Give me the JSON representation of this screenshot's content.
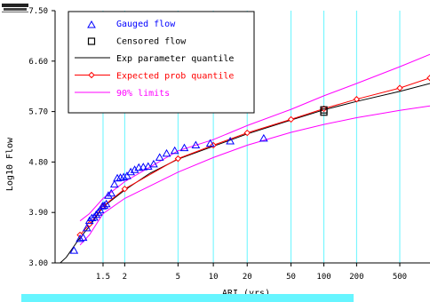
{
  "chart_data": {
    "type": "scatter",
    "title": "",
    "xlabel": "ARI (yrs)",
    "ylabel": "Log10 Flow",
    "x_scale": "gumbel-reduced-variate",
    "xlim": [
      1.05,
      950
    ],
    "ylim": [
      3.0,
      7.5
    ],
    "y_ticks": [
      "3.00",
      "3.90",
      "4.80",
      "5.70",
      "6.60",
      "7.50"
    ],
    "x_ticks": [
      "1.5",
      "2",
      "5",
      "10",
      "20",
      "50",
      "100",
      "200",
      "500"
    ],
    "grid_x_at": [
      1.5,
      2,
      5,
      10,
      20,
      50,
      100,
      200,
      500
    ],
    "grid_color": "#66f5ff",
    "legend_position": "top-left",
    "legend": [
      {
        "label": "Gauged flow",
        "marker": "triangle",
        "color": "#0000ff"
      },
      {
        "label": "Censored flow",
        "marker": "square",
        "color": "#000000"
      },
      {
        "label": "Exp parameter quantile",
        "marker": "line",
        "color": "#000000"
      },
      {
        "label": "Expected prob quantile",
        "marker": "line-diamond",
        "color": "#ff0000"
      },
      {
        "label": "90% limits",
        "marker": "line",
        "color": "#ff00ff"
      }
    ],
    "series": [
      {
        "name": "Gauged flow",
        "kind": "points",
        "marker": "triangle",
        "color": "#0000ff",
        "points": [
          [
            1.15,
            3.22
          ],
          [
            1.2,
            3.43
          ],
          [
            1.23,
            3.45
          ],
          [
            1.27,
            3.62
          ],
          [
            1.3,
            3.75
          ],
          [
            1.33,
            3.8
          ],
          [
            1.36,
            3.81
          ],
          [
            1.39,
            3.86
          ],
          [
            1.42,
            3.9
          ],
          [
            1.45,
            3.94
          ],
          [
            1.49,
            4.01
          ],
          [
            1.52,
            4.02
          ],
          [
            1.56,
            4.05
          ],
          [
            1.6,
            4.2
          ],
          [
            1.66,
            4.24
          ],
          [
            1.73,
            4.4
          ],
          [
            1.8,
            4.51
          ],
          [
            1.88,
            4.52
          ],
          [
            1.97,
            4.53
          ],
          [
            2.07,
            4.55
          ],
          [
            2.19,
            4.62
          ],
          [
            2.33,
            4.66
          ],
          [
            2.49,
            4.7
          ],
          [
            2.68,
            4.71
          ],
          [
            2.91,
            4.72
          ],
          [
            3.2,
            4.76
          ],
          [
            3.56,
            4.88
          ],
          [
            4.04,
            4.95
          ],
          [
            4.7,
            5.0
          ],
          [
            5.64,
            5.05
          ],
          [
            7.05,
            5.1
          ],
          [
            9.4,
            5.13
          ],
          [
            14.1,
            5.17
          ],
          [
            28.2,
            5.22
          ]
        ]
      },
      {
        "name": "Censored flow",
        "kind": "points",
        "marker": "square",
        "color": "#000000",
        "points": [
          [
            100,
            5.69
          ],
          [
            100,
            5.73
          ]
        ]
      },
      {
        "name": "Exp parameter quantile",
        "kind": "line",
        "color": "#000000",
        "points": [
          [
            1.07,
            3.0
          ],
          [
            1.1,
            3.1
          ],
          [
            1.15,
            3.3
          ],
          [
            1.2,
            3.45
          ],
          [
            1.3,
            3.65
          ],
          [
            1.5,
            4.0
          ],
          [
            2.0,
            4.3
          ],
          [
            3.0,
            4.6
          ],
          [
            5.0,
            4.85
          ],
          [
            10.0,
            5.08
          ],
          [
            20.0,
            5.3
          ],
          [
            50.0,
            5.55
          ],
          [
            100,
            5.73
          ],
          [
            200,
            5.88
          ],
          [
            500,
            6.06
          ],
          [
            950,
            6.2
          ]
        ]
      },
      {
        "name": "Expected prob quantile",
        "kind": "line",
        "marker": "diamond",
        "color": "#ff0000",
        "points": [
          [
            1.2,
            3.5
          ],
          [
            1.3,
            3.69
          ],
          [
            1.5,
            4.01
          ],
          [
            2.0,
            4.32
          ],
          [
            5.0,
            4.86
          ],
          [
            10.0,
            5.1
          ],
          [
            20.0,
            5.32
          ],
          [
            50.0,
            5.56
          ],
          [
            100,
            5.75
          ],
          [
            200,
            5.92
          ],
          [
            500,
            6.12
          ],
          [
            950,
            6.3
          ]
        ]
      },
      {
        "name": "90% limits",
        "kind": "line",
        "color": "#ff00ff",
        "points": [
          [
            1.2,
            3.75
          ],
          [
            1.3,
            3.88
          ],
          [
            1.5,
            4.15
          ],
          [
            2.0,
            4.45
          ],
          [
            5.0,
            5.0
          ],
          [
            10.0,
            5.2
          ],
          [
            20.0,
            5.45
          ],
          [
            50.0,
            5.74
          ],
          [
            100,
            5.98
          ],
          [
            200,
            6.2
          ],
          [
            500,
            6.5
          ],
          [
            950,
            6.72
          ]
        ]
      },
      {
        "name": "90% limits",
        "kind": "line",
        "color": "#ff00ff",
        "points": [
          [
            1.2,
            3.32
          ],
          [
            1.3,
            3.5
          ],
          [
            1.5,
            3.88
          ],
          [
            2.0,
            4.15
          ],
          [
            5.0,
            4.62
          ],
          [
            10.0,
            4.88
          ],
          [
            20.0,
            5.1
          ],
          [
            50.0,
            5.33
          ],
          [
            100,
            5.47
          ],
          [
            200,
            5.59
          ],
          [
            500,
            5.72
          ],
          [
            950,
            5.8
          ]
        ]
      }
    ]
  }
}
